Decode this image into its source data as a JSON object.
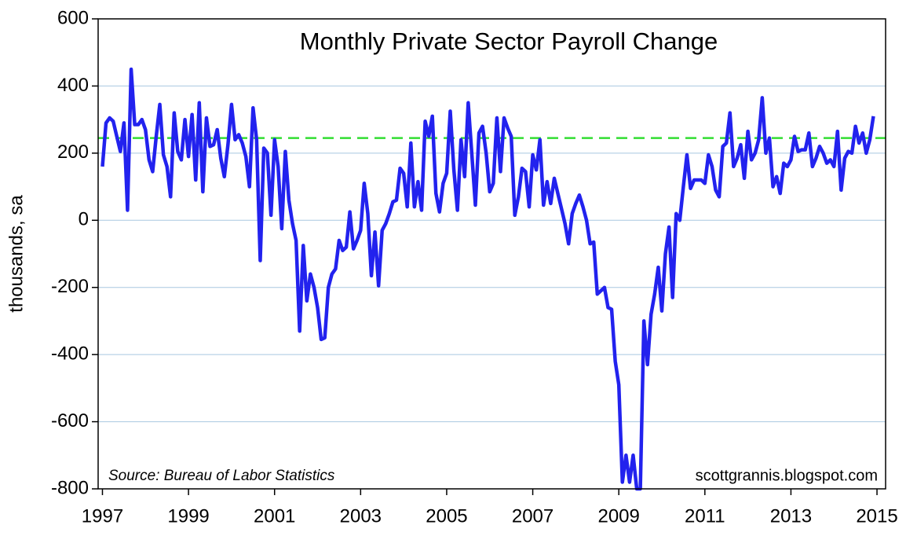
{
  "chart_data": {
    "type": "line",
    "title": "Monthly Private Sector Payroll Change",
    "y_label": "thousands, sa",
    "source": "Source:  Bureau of Labor Statistics",
    "watermark": "scottgrannis.blogspot.com",
    "xlim": [
      1996.9,
      2015.2
    ],
    "xticks": [
      1997,
      1999,
      2001,
      2003,
      2005,
      2007,
      2009,
      2011,
      2013,
      2015
    ],
    "ylim": [
      -800,
      600
    ],
    "yticks": [
      -800,
      -600,
      -400,
      -200,
      0,
      200,
      400,
      600
    ],
    "grid": true,
    "reference_line": {
      "value": 245,
      "color": "#33dd33"
    },
    "x": [
      1997,
      1997.083,
      1997.167,
      1997.25,
      1997.333,
      1997.417,
      1997.5,
      1997.583,
      1997.667,
      1997.75,
      1997.833,
      1997.917,
      1998,
      1998.083,
      1998.167,
      1998.25,
      1998.333,
      1998.417,
      1998.5,
      1998.583,
      1998.667,
      1998.75,
      1998.833,
      1998.917,
      1999,
      1999.083,
      1999.167,
      1999.25,
      1999.333,
      1999.417,
      1999.5,
      1999.583,
      1999.667,
      1999.75,
      1999.833,
      1999.917,
      2000,
      2000.083,
      2000.167,
      2000.25,
      2000.333,
      2000.417,
      2000.5,
      2000.583,
      2000.667,
      2000.75,
      2000.833,
      2000.917,
      2001,
      2001.083,
      2001.167,
      2001.25,
      2001.333,
      2001.417,
      2001.5,
      2001.583,
      2001.667,
      2001.75,
      2001.833,
      2001.917,
      2002,
      2002.083,
      2002.167,
      2002.25,
      2002.333,
      2002.417,
      2002.5,
      2002.583,
      2002.667,
      2002.75,
      2002.833,
      2002.917,
      2003,
      2003.083,
      2003.167,
      2003.25,
      2003.333,
      2003.417,
      2003.5,
      2003.583,
      2003.667,
      2003.75,
      2003.833,
      2003.917,
      2004,
      2004.083,
      2004.167,
      2004.25,
      2004.333,
      2004.417,
      2004.5,
      2004.583,
      2004.667,
      2004.75,
      2004.833,
      2004.917,
      2005,
      2005.083,
      2005.167,
      2005.25,
      2005.333,
      2005.417,
      2005.5,
      2005.583,
      2005.667,
      2005.75,
      2005.833,
      2005.917,
      2006,
      2006.083,
      2006.167,
      2006.25,
      2006.333,
      2006.417,
      2006.5,
      2006.583,
      2006.667,
      2006.75,
      2006.833,
      2006.917,
      2007,
      2007.083,
      2007.167,
      2007.25,
      2007.333,
      2007.417,
      2007.5,
      2007.583,
      2007.667,
      2007.75,
      2007.833,
      2007.917,
      2008,
      2008.083,
      2008.167,
      2008.25,
      2008.333,
      2008.417,
      2008.5,
      2008.583,
      2008.667,
      2008.75,
      2008.833,
      2008.917,
      2009,
      2009.083,
      2009.167,
      2009.25,
      2009.333,
      2009.417,
      2009.5,
      2009.583,
      2009.667,
      2009.75,
      2009.833,
      2009.917,
      2010,
      2010.083,
      2010.167,
      2010.25,
      2010.333,
      2010.417,
      2010.5,
      2010.583,
      2010.667,
      2010.75,
      2010.833,
      2010.917,
      2011,
      2011.083,
      2011.167,
      2011.25,
      2011.333,
      2011.417,
      2011.5,
      2011.583,
      2011.667,
      2011.75,
      2011.833,
      2011.917,
      2012,
      2012.083,
      2012.167,
      2012.25,
      2012.333,
      2012.417,
      2012.5,
      2012.583,
      2012.667,
      2012.75,
      2012.833,
      2012.917,
      2013,
      2013.083,
      2013.167,
      2013.25,
      2013.333,
      2013.417,
      2013.5,
      2013.583,
      2013.667,
      2013.75,
      2013.833,
      2013.917,
      2014,
      2014.083,
      2014.167,
      2014.25,
      2014.333,
      2014.417,
      2014.5,
      2014.583,
      2014.667,
      2014.75,
      2014.833,
      2014.917
    ],
    "series": [
      {
        "color": "#2222ee",
        "values": [
          160,
          290,
          305,
          295,
          250,
          205,
          290,
          30,
          450,
          285,
          285,
          300,
          270,
          180,
          145,
          250,
          345,
          195,
          160,
          70,
          320,
          205,
          180,
          300,
          190,
          315,
          120,
          350,
          85,
          305,
          220,
          225,
          270,
          185,
          130,
          225,
          345,
          240,
          255,
          230,
          190,
          100,
          335,
          240,
          -120,
          215,
          200,
          15,
          240,
          160,
          -25,
          205,
          60,
          -10,
          -60,
          -330,
          -75,
          -240,
          -160,
          -200,
          -260,
          -355,
          -350,
          -200,
          -160,
          -145,
          -60,
          -90,
          -80,
          25,
          -85,
          -60,
          -30,
          110,
          20,
          -165,
          -35,
          -195,
          -30,
          -10,
          20,
          55,
          60,
          155,
          140,
          40,
          230,
          40,
          115,
          30,
          295,
          250,
          310,
          80,
          25,
          110,
          140,
          325,
          150,
          30,
          240,
          130,
          350,
          200,
          45,
          260,
          280,
          200,
          85,
          110,
          305,
          145,
          305,
          275,
          250,
          15,
          70,
          155,
          145,
          40,
          195,
          150,
          240,
          45,
          115,
          50,
          125,
          80,
          35,
          -10,
          -70,
          20,
          50,
          75,
          40,
          0,
          -70,
          -65,
          -220,
          -210,
          -200,
          -260,
          -265,
          -420,
          -490,
          -780,
          -700,
          -780,
          -700,
          -800,
          -800,
          -300,
          -430,
          -280,
          -220,
          -140,
          -270,
          -100,
          -20,
          -230,
          20,
          0,
          100,
          195,
          95,
          120,
          120,
          120,
          110,
          195,
          160,
          90,
          70,
          220,
          230,
          320,
          160,
          185,
          225,
          125,
          265,
          180,
          200,
          240,
          365,
          200,
          245,
          100,
          130,
          80,
          170,
          160,
          180,
          250,
          205,
          210,
          210,
          260,
          160,
          185,
          220,
          200,
          170,
          180,
          160,
          265,
          90,
          185,
          205,
          200,
          280,
          230,
          260,
          200,
          240,
          310
        ]
      }
    ]
  }
}
